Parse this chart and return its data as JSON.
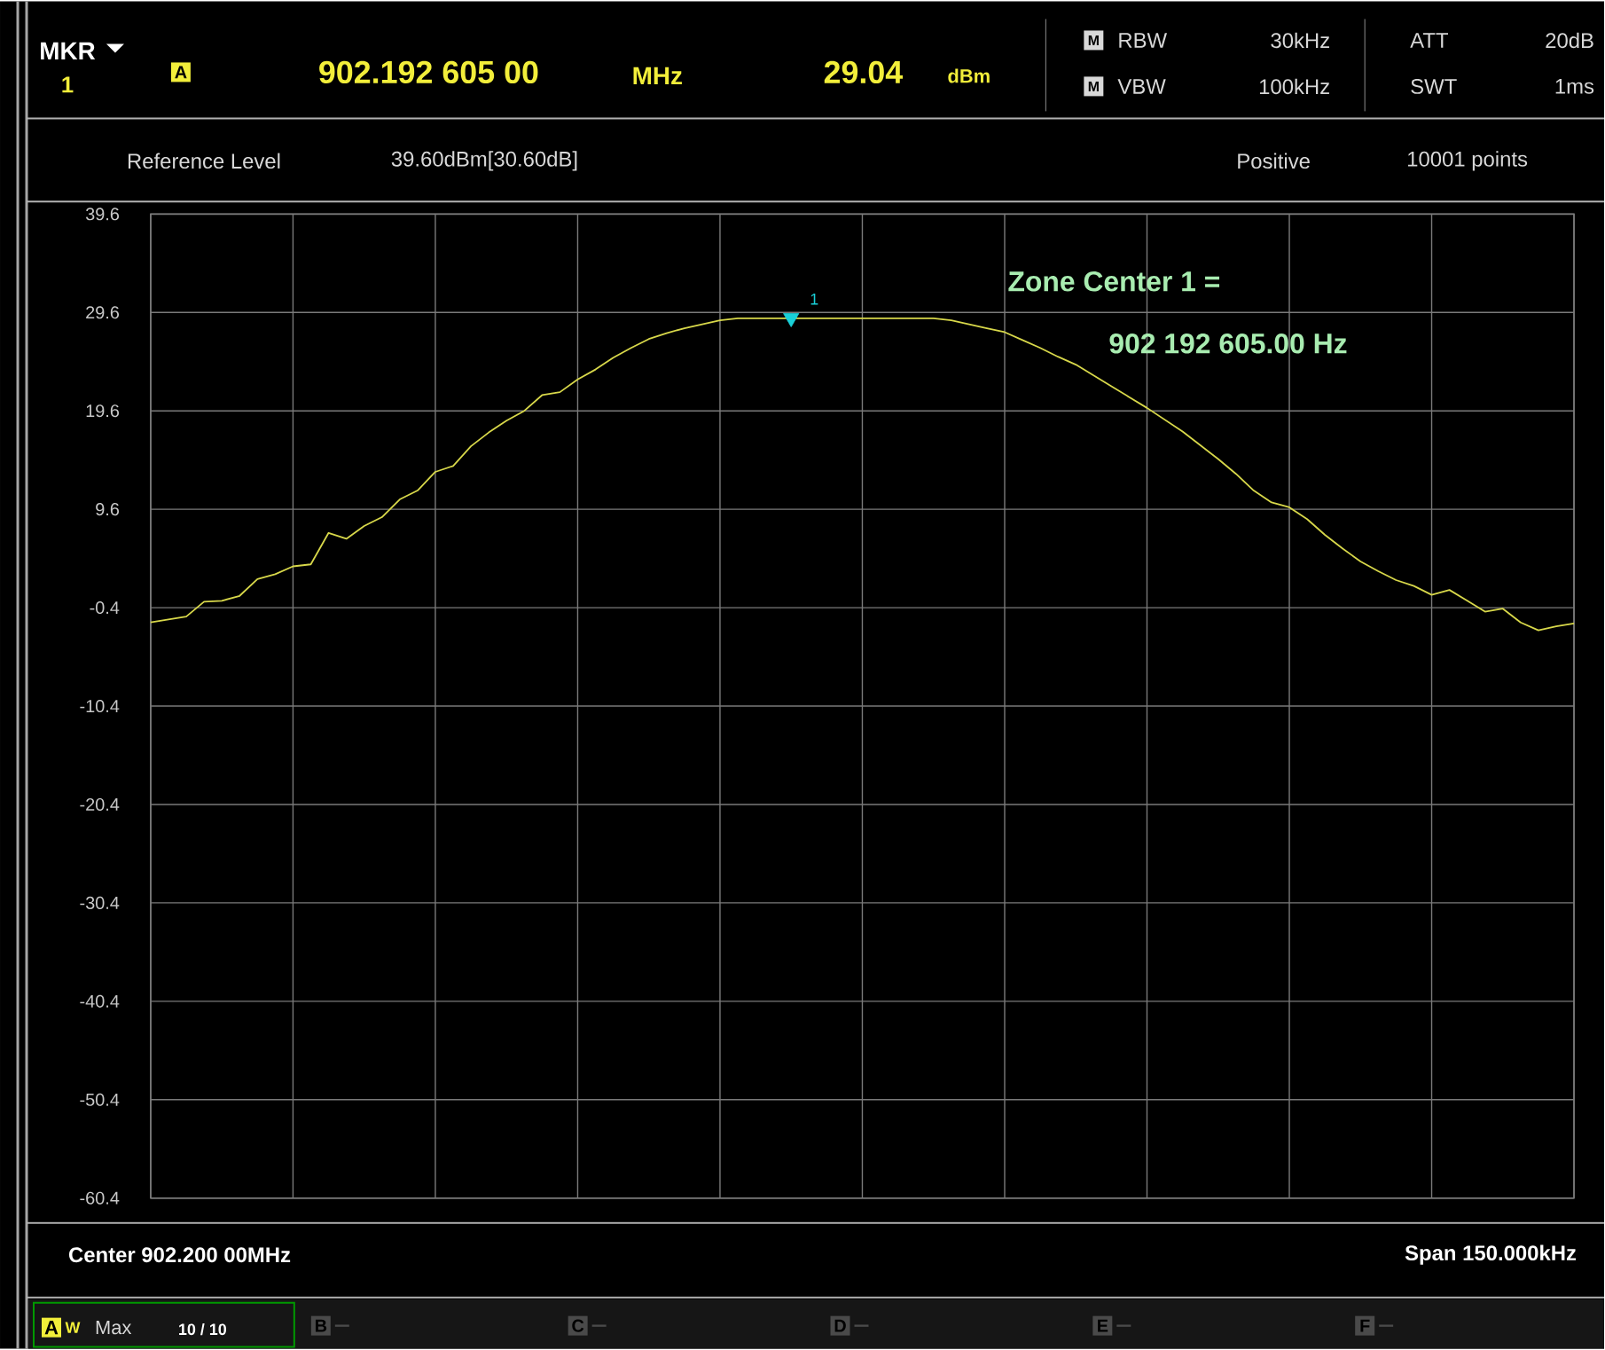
{
  "chart_data": {
    "type": "line",
    "categories": [
      null,
      null,
      null,
      null,
      null,
      null,
      null,
      null,
      null,
      null,
      null,
      null,
      null,
      null,
      null,
      null,
      null,
      null,
      null,
      null,
      null,
      null,
      null,
      null,
      null,
      null,
      null,
      null,
      null,
      null,
      null,
      null,
      null,
      null,
      null,
      null,
      null,
      null,
      null,
      null,
      null,
      null,
      null,
      null,
      null,
      null,
      null,
      null,
      null,
      null,
      null,
      null,
      null,
      null,
      null,
      null,
      null,
      null,
      null,
      null,
      null,
      null,
      null,
      null,
      null,
      null,
      null,
      null,
      null,
      null,
      null,
      null,
      null,
      null,
      null,
      null,
      null,
      null,
      null,
      null,
      null
    ],
    "series": [
      {
        "color": "#d8d84a",
        "values": [
          -1.9,
          -1.6,
          -1.3,
          0.2,
          0.3,
          0.8,
          2.5,
          3.0,
          3.8,
          4.0,
          7.2,
          6.6,
          7.9,
          8.8,
          10.6,
          11.5,
          13.4,
          14.0,
          16.0,
          17.4,
          18.6,
          19.6,
          21.2,
          21.5,
          22.8,
          23.8,
          25.0,
          26.0,
          26.9,
          27.5,
          28.0,
          28.4,
          28.8,
          29.0,
          29.0,
          29.0,
          29.0,
          29.0,
          29.0,
          29.0,
          29.0,
          29.0,
          29.0,
          29.0,
          29.0,
          28.8,
          28.4,
          28.0,
          27.6,
          26.8,
          26.0,
          25.1,
          24.3,
          23.2,
          22.1,
          21.0,
          19.9,
          18.7,
          17.5,
          16.1,
          14.7,
          13.2,
          11.5,
          10.3,
          9.8,
          8.6,
          7.0,
          5.6,
          4.3,
          3.3,
          2.4,
          1.8,
          0.9,
          1.4,
          0.3,
          -0.8,
          -0.5,
          -1.9,
          -2.7,
          -2.3,
          -2.0
        ]
      },
      {
        "type": "scatter",
        "color": "#19d0d8",
        "marker": "triangle",
        "values": [
          null,
          null,
          null,
          null,
          null,
          null,
          null,
          null,
          null,
          null,
          null,
          null,
          null,
          null,
          null,
          null,
          null,
          null,
          null,
          null,
          null,
          null,
          null,
          null,
          null,
          null,
          null,
          null,
          null,
          null,
          null,
          null,
          null,
          null,
          null,
          null,
          29.04,
          null,
          null,
          null,
          null,
          null,
          null,
          null,
          null,
          null,
          null,
          null,
          null,
          null,
          null,
          null,
          null,
          null,
          null,
          null,
          null,
          null,
          null,
          null,
          null,
          null,
          null,
          null,
          null,
          null,
          null,
          null,
          null,
          null,
          null,
          null,
          null,
          null,
          null,
          null,
          null,
          null,
          null,
          null,
          null
        ]
      }
    ],
    "ylim": [
      -60.4,
      39.6
    ],
    "yticks": [
      39.6,
      29.6,
      19.6,
      9.6,
      -0.4,
      -10.4,
      -20.4,
      -30.4,
      -40.4,
      -50.4,
      -60.4
    ],
    "grid": true,
    "annotations": [
      {
        "text": "1",
        "y": 29.04
      },
      "Zone Center 1 =",
      "902 192 605.00 Hz",
      "MKR",
      "1",
      "A",
      "902.192 605 00",
      "MHz",
      "29.04",
      "dBm",
      "M",
      "RBW",
      "30kHz",
      "M",
      "VBW",
      "100kHz",
      "ATT",
      "20dB",
      "SWT",
      "1ms",
      "Reference Level",
      "39.60dBm[30.60dB]",
      "Positive",
      "10001 points",
      "Center 902.200 00MHz",
      "Span 150.000kHz",
      "A",
      "W",
      "Max",
      "10 / 10",
      "B",
      "C",
      "D",
      "E",
      "F"
    ]
  }
}
